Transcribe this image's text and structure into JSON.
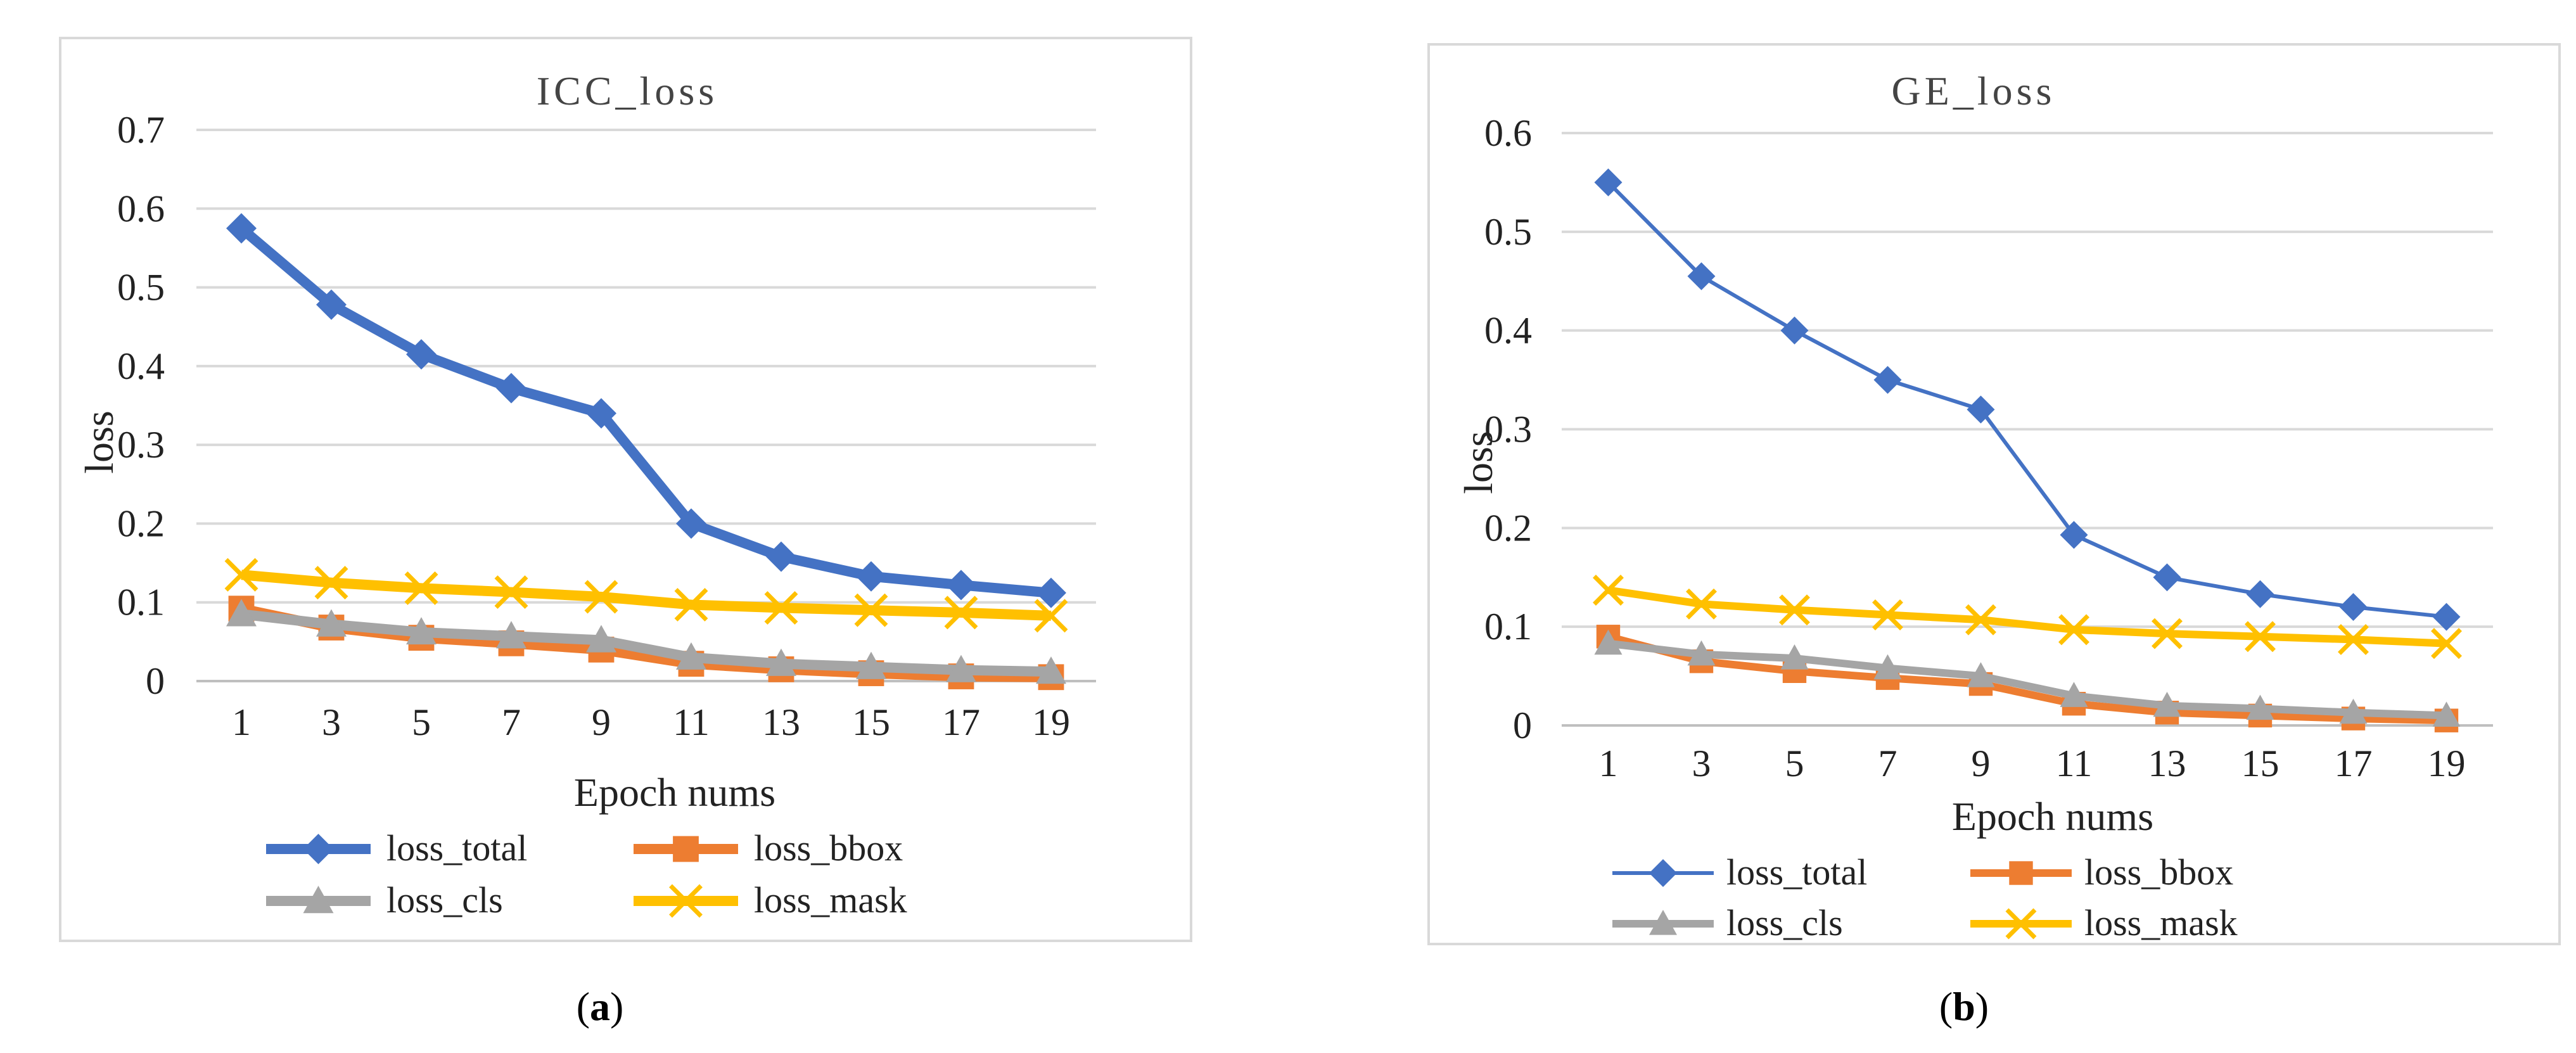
{
  "chart_data": [
    {
      "type": "line",
      "title": "ICC_loss",
      "xlabel": "Epoch nums",
      "ylabel": "loss",
      "ylim": [
        0,
        0.7
      ],
      "yticks": [
        "0",
        "0.1",
        "0.2",
        "0.3",
        "0.4",
        "0.5",
        "0.6",
        "0.7"
      ],
      "categories": [
        "1",
        "3",
        "5",
        "7",
        "9",
        "11",
        "13",
        "15",
        "17",
        "19"
      ],
      "grid": true,
      "legend_position": "bottom",
      "caption_letter": "a",
      "series": [
        {
          "name": "loss_total",
          "color": "#4472C4",
          "marker": "diamond",
          "values": [
            0.575,
            0.478,
            0.415,
            0.372,
            0.34,
            0.2,
            0.158,
            0.133,
            0.122,
            0.112
          ]
        },
        {
          "name": "loss_bbox",
          "color": "#ED7D31",
          "marker": "square",
          "values": [
            0.092,
            0.068,
            0.055,
            0.048,
            0.04,
            0.022,
            0.015,
            0.01,
            0.006,
            0.005
          ]
        },
        {
          "name": "loss_cls",
          "color": "#A5A5A5",
          "marker": "triangle",
          "values": [
            0.085,
            0.072,
            0.062,
            0.057,
            0.052,
            0.03,
            0.022,
            0.018,
            0.014,
            0.012
          ]
        },
        {
          "name": "loss_mask",
          "color": "#FFC000",
          "marker": "x",
          "values": [
            0.135,
            0.125,
            0.118,
            0.113,
            0.107,
            0.097,
            0.093,
            0.09,
            0.087,
            0.083
          ]
        }
      ]
    },
    {
      "type": "line",
      "title": "GE_loss",
      "xlabel": "Epoch nums",
      "ylabel": "loss",
      "ylim": [
        0,
        0.6
      ],
      "yticks": [
        "0",
        "0.1",
        "0.2",
        "0.3",
        "0.4",
        "0.5",
        "0.6"
      ],
      "categories": [
        "1",
        "3",
        "5",
        "7",
        "9",
        "11",
        "13",
        "15",
        "17",
        "19"
      ],
      "grid": true,
      "legend_position": "bottom",
      "caption_letter": "b",
      "series": [
        {
          "name": "loss_total",
          "color": "#4472C4",
          "marker": "diamond",
          "values": [
            0.55,
            0.455,
            0.4,
            0.35,
            0.32,
            0.193,
            0.15,
            0.133,
            0.12,
            0.11
          ]
        },
        {
          "name": "loss_bbox",
          "color": "#ED7D31",
          "marker": "square",
          "values": [
            0.09,
            0.065,
            0.055,
            0.048,
            0.042,
            0.022,
            0.013,
            0.01,
            0.007,
            0.005
          ]
        },
        {
          "name": "loss_cls",
          "color": "#A5A5A5",
          "marker": "triangle",
          "values": [
            0.083,
            0.072,
            0.068,
            0.058,
            0.05,
            0.03,
            0.02,
            0.017,
            0.013,
            0.01
          ]
        },
        {
          "name": "loss_mask",
          "color": "#FFC000",
          "marker": "x",
          "values": [
            0.137,
            0.123,
            0.117,
            0.112,
            0.107,
            0.097,
            0.093,
            0.09,
            0.087,
            0.083
          ]
        }
      ]
    }
  ]
}
